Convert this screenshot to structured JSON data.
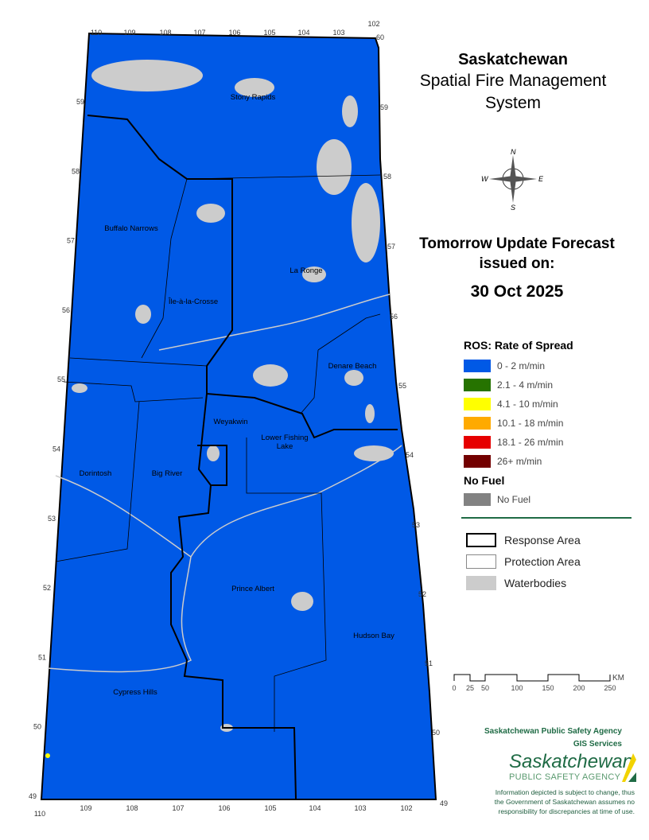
{
  "title": {
    "line1": "Saskatchewan",
    "line2": "Spatial Fire Management",
    "line3": "System"
  },
  "forecast": {
    "line1": "Tomorrow Update Forecast",
    "line2": "issued on:",
    "date": "30 Oct 2025"
  },
  "compass": {
    "icon": "compass-rose-icon",
    "n": "N",
    "s": "S",
    "e": "E",
    "w": "W"
  },
  "legend": {
    "ros_title": "ROS: Rate of Spread",
    "ros_items": [
      {
        "label": "0 - 2 m/min",
        "color": "#0059e6"
      },
      {
        "label": "2.1 - 4 m/min",
        "color": "#267300"
      },
      {
        "label": "4.1 - 10 m/min",
        "color": "#ffff00"
      },
      {
        "label": "10.1 - 18 m/min",
        "color": "#ffaa00"
      },
      {
        "label": "18.1 - 26 m/min",
        "color": "#e60000"
      },
      {
        "label": "26+ m/min",
        "color": "#730000"
      }
    ],
    "nofuel_title": "No Fuel",
    "nofuel_item": {
      "label": "No Fuel",
      "color": "#828282"
    },
    "areas": [
      {
        "label": "Response Area"
      },
      {
        "label": "Protection Area"
      },
      {
        "label": "Waterbodies",
        "color": "#cccccc"
      }
    ]
  },
  "scale": {
    "unit": "KM",
    "ticks": [
      "0",
      "25",
      "50",
      "100",
      "150",
      "200",
      "250"
    ]
  },
  "agency": {
    "line1": "Saskatchewan Public Safety Agency",
    "line2": "GIS  Services",
    "logo_text1": "Saskatchewan",
    "logo_text2": "PUBLIC SAFETY AGENCY",
    "disclaimer": [
      "Information depicted is subject to change, thus",
      "the Government of Saskatchewan assumes no",
      "responsibility for discrepancies at time of use."
    ]
  },
  "map": {
    "places": [
      "Stony Rapids",
      "Buffalo Narrows",
      "La Ronge",
      "Île-à-la-Crosse",
      "Denare Beach",
      "Weyakwin",
      "Lower Fishing Lake",
      "Dorintosh",
      "Big River",
      "Prince Albert",
      "Hudson Bay",
      "Cypress Hills"
    ],
    "lon_top": [
      "110",
      "109",
      "108",
      "107",
      "106",
      "105",
      "104",
      "103",
      "102"
    ],
    "lat_top_right": "60",
    "lat_left": [
      "59",
      "58",
      "57",
      "56",
      "55",
      "54",
      "53",
      "52",
      "51",
      "50",
      "49"
    ],
    "lat_right": [
      "59",
      "58",
      "57",
      "56",
      "55",
      "54",
      "53",
      "52",
      "51",
      "50",
      "49"
    ],
    "lon_bottom": [
      "110",
      "109",
      "108",
      "107",
      "106",
      "105",
      "104",
      "103",
      "102"
    ]
  }
}
